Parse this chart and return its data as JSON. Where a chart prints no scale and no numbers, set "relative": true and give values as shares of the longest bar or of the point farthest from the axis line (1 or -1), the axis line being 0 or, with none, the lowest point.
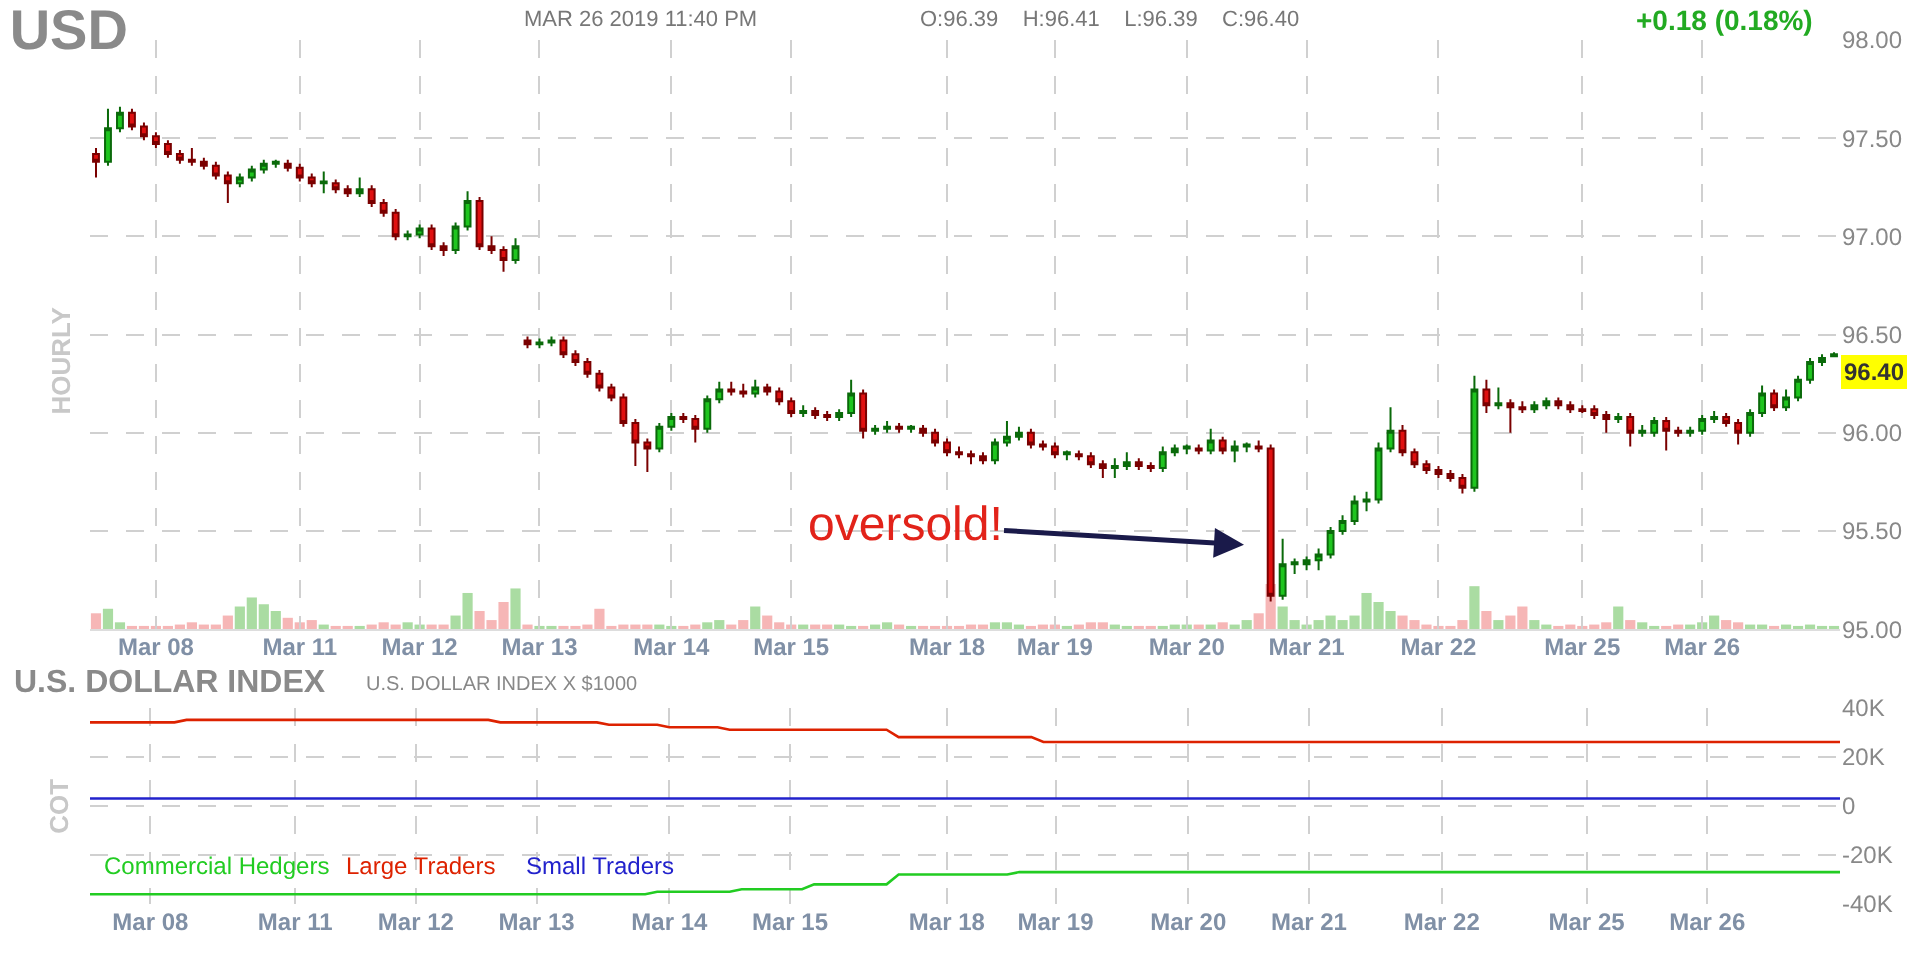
{
  "chart_data": [
    {
      "type": "candlestick",
      "title": "USD",
      "ylabel": "HOURLY",
      "annotations": [
        "MAR 26 2019 11:40 PM",
        "O:96.39    H:96.41    L:96.39    C:96.40",
        "+0.18 (0.18%)",
        "oversold!",
        "96.40"
      ],
      "categories": [
        null,
        null,
        null,
        null,
        null,
        "Mar 08",
        null,
        null,
        null,
        null,
        null,
        null,
        null,
        null,
        null,
        null,
        null,
        "Mar 11",
        null,
        null,
        null,
        null,
        null,
        null,
        null,
        null,
        null,
        "Mar 12",
        null,
        null,
        null,
        null,
        null,
        null,
        null,
        null,
        null,
        "Mar 13",
        null,
        null,
        null,
        null,
        null,
        null,
        null,
        null,
        null,
        null,
        "Mar 14",
        null,
        null,
        null,
        null,
        null,
        null,
        null,
        null,
        null,
        "Mar 15",
        null,
        null,
        null,
        null,
        null,
        null,
        null,
        null,
        null,
        null,
        null,
        null,
        "Mar 18",
        null,
        null,
        null,
        null,
        null,
        null,
        null,
        null,
        "Mar 19",
        null,
        null,
        null,
        null,
        null,
        null,
        null,
        null,
        null,
        null,
        "Mar 20",
        null,
        null,
        null,
        null,
        null,
        null,
        null,
        null,
        null,
        "Mar 21",
        null,
        null,
        null,
        null,
        null,
        null,
        null,
        null,
        null,
        null,
        "Mar 22",
        null,
        null,
        null,
        null,
        null,
        null,
        null,
        null,
        null,
        null,
        null,
        "Mar 25",
        null,
        null,
        null,
        null,
        null,
        null,
        null,
        null,
        null,
        "Mar 26",
        null,
        null,
        null,
        null,
        null,
        null,
        null,
        null,
        null,
        null,
        null
      ],
      "ohlc": [
        [
          97.42,
          97.45,
          97.3,
          97.38
        ],
        [
          97.38,
          97.65,
          97.36,
          97.55
        ],
        [
          97.55,
          97.66,
          97.53,
          97.63
        ],
        [
          97.63,
          97.65,
          97.54,
          97.56
        ],
        [
          97.56,
          97.58,
          97.49,
          97.51
        ],
        [
          97.51,
          97.53,
          97.45,
          97.47
        ],
        [
          97.47,
          97.49,
          97.4,
          97.42
        ],
        [
          97.42,
          97.44,
          97.37,
          97.39
        ],
        [
          97.39,
          97.45,
          97.36,
          97.38
        ],
        [
          97.38,
          97.4,
          97.34,
          97.36
        ],
        [
          97.36,
          97.38,
          97.29,
          97.31
        ],
        [
          97.31,
          97.33,
          97.17,
          97.27
        ],
        [
          97.27,
          97.32,
          97.25,
          97.3
        ],
        [
          97.3,
          97.36,
          97.28,
          97.34
        ],
        [
          97.34,
          97.39,
          97.32,
          97.37
        ],
        [
          97.37,
          97.39,
          97.35,
          97.38
        ],
        [
          97.37,
          97.39,
          97.33,
          97.35
        ],
        [
          97.35,
          97.37,
          97.28,
          97.3
        ],
        [
          97.3,
          97.32,
          97.25,
          97.27
        ],
        [
          97.27,
          97.33,
          97.22,
          97.28
        ],
        [
          97.27,
          97.29,
          97.22,
          97.24
        ],
        [
          97.24,
          97.26,
          97.2,
          97.22
        ],
        [
          97.22,
          97.3,
          97.2,
          97.24
        ],
        [
          97.24,
          97.26,
          97.15,
          97.17
        ],
        [
          97.17,
          97.19,
          97.1,
          97.12
        ],
        [
          97.12,
          97.14,
          96.98,
          97.0
        ],
        [
          97.0,
          97.03,
          96.98,
          97.01
        ],
        [
          97.01,
          97.06,
          96.99,
          97.04
        ],
        [
          97.04,
          97.06,
          96.93,
          96.95
        ],
        [
          96.95,
          96.97,
          96.9,
          96.93
        ],
        [
          96.93,
          97.07,
          96.91,
          97.05
        ],
        [
          97.05,
          97.23,
          97.03,
          97.18
        ],
        [
          97.18,
          97.2,
          96.93,
          96.95
        ],
        [
          96.95,
          97.0,
          96.91,
          96.93
        ],
        [
          96.93,
          96.95,
          96.82,
          96.88
        ],
        [
          96.88,
          96.99,
          96.86,
          96.95
        ],
        [
          96.47,
          96.49,
          96.43,
          96.45
        ],
        [
          96.45,
          96.48,
          96.43,
          96.46
        ],
        [
          96.46,
          96.49,
          96.44,
          96.47
        ],
        [
          96.47,
          96.49,
          96.38,
          96.4
        ],
        [
          96.4,
          96.42,
          96.34,
          96.36
        ],
        [
          96.36,
          96.38,
          96.28,
          96.3
        ],
        [
          96.3,
          96.32,
          96.21,
          96.23
        ],
        [
          96.23,
          96.25,
          96.16,
          96.18
        ],
        [
          96.18,
          96.2,
          96.03,
          96.05
        ],
        [
          96.05,
          96.07,
          95.83,
          95.95
        ],
        [
          95.95,
          95.97,
          95.8,
          95.92
        ],
        [
          95.92,
          96.05,
          95.9,
          96.03
        ],
        [
          96.03,
          96.1,
          96.01,
          96.08
        ],
        [
          96.08,
          96.1,
          96.05,
          96.07
        ],
        [
          96.07,
          96.09,
          95.95,
          96.02
        ],
        [
          96.02,
          96.19,
          96.0,
          96.17
        ],
        [
          96.17,
          96.26,
          96.15,
          96.22
        ],
        [
          96.22,
          96.26,
          96.19,
          96.21
        ],
        [
          96.21,
          96.25,
          96.18,
          96.2
        ],
        [
          96.2,
          96.27,
          96.18,
          96.23
        ],
        [
          96.23,
          96.25,
          96.19,
          96.21
        ],
        [
          96.21,
          96.23,
          96.14,
          96.16
        ],
        [
          96.16,
          96.18,
          96.08,
          96.1
        ],
        [
          96.1,
          96.14,
          96.08,
          96.11
        ],
        [
          96.11,
          96.13,
          96.07,
          96.09
        ],
        [
          96.09,
          96.11,
          96.06,
          96.08
        ],
        [
          96.08,
          96.12,
          96.06,
          96.1
        ],
        [
          96.1,
          96.27,
          96.08,
          96.2
        ],
        [
          96.2,
          96.22,
          95.97,
          96.01
        ],
        [
          96.01,
          96.04,
          95.99,
          96.02
        ],
        [
          96.02,
          96.06,
          96.0,
          96.03
        ],
        [
          96.03,
          96.05,
          96.0,
          96.02
        ],
        [
          96.02,
          96.04,
          96.0,
          96.03
        ],
        [
          96.02,
          96.04,
          95.98,
          96.0
        ],
        [
          96.0,
          96.02,
          95.93,
          95.95
        ],
        [
          95.95,
          95.97,
          95.88,
          95.9
        ],
        [
          95.9,
          95.93,
          95.87,
          95.89
        ],
        [
          95.89,
          95.91,
          95.84,
          95.88
        ],
        [
          95.88,
          95.9,
          95.84,
          95.86
        ],
        [
          95.86,
          95.97,
          95.84,
          95.95
        ],
        [
          95.95,
          96.06,
          95.93,
          95.98
        ],
        [
          95.98,
          96.03,
          95.96,
          96.0
        ],
        [
          96.0,
          96.02,
          95.92,
          95.94
        ],
        [
          95.94,
          95.96,
          95.91,
          95.93
        ],
        [
          95.93,
          95.95,
          95.87,
          95.89
        ],
        [
          95.89,
          95.91,
          95.86,
          95.9
        ],
        [
          95.89,
          95.91,
          95.86,
          95.88
        ],
        [
          95.88,
          95.9,
          95.82,
          95.84
        ],
        [
          95.84,
          95.86,
          95.77,
          95.82
        ],
        [
          95.82,
          95.87,
          95.77,
          95.83
        ],
        [
          95.83,
          95.9,
          95.81,
          95.85
        ],
        [
          95.85,
          95.87,
          95.81,
          95.83
        ],
        [
          95.83,
          95.85,
          95.8,
          95.82
        ],
        [
          95.82,
          95.93,
          95.8,
          95.9
        ],
        [
          95.9,
          95.94,
          95.88,
          95.92
        ],
        [
          95.92,
          95.94,
          95.89,
          95.93
        ],
        [
          95.92,
          95.94,
          95.89,
          95.91
        ],
        [
          95.91,
          96.02,
          95.89,
          95.96
        ],
        [
          95.96,
          95.98,
          95.89,
          95.91
        ],
        [
          95.91,
          95.96,
          95.85,
          95.93
        ],
        [
          95.93,
          95.95,
          95.9,
          95.94
        ],
        [
          95.93,
          95.96,
          95.9,
          95.92
        ],
        [
          95.92,
          95.94,
          95.14,
          95.17
        ],
        [
          95.17,
          95.46,
          95.15,
          95.33
        ],
        [
          95.33,
          95.36,
          95.28,
          95.34
        ],
        [
          95.33,
          95.37,
          95.3,
          95.35
        ],
        [
          95.35,
          95.41,
          95.3,
          95.38
        ],
        [
          95.38,
          95.52,
          95.36,
          95.5
        ],
        [
          95.5,
          95.58,
          95.48,
          95.55
        ],
        [
          95.55,
          95.68,
          95.53,
          95.65
        ],
        [
          95.65,
          95.7,
          95.6,
          95.66
        ],
        [
          95.66,
          95.95,
          95.64,
          95.92
        ],
        [
          95.92,
          96.13,
          95.9,
          96.01
        ],
        [
          96.01,
          96.04,
          95.88,
          95.9
        ],
        [
          95.9,
          95.92,
          95.82,
          95.84
        ],
        [
          95.84,
          95.86,
          95.79,
          95.81
        ],
        [
          95.81,
          95.83,
          95.77,
          95.79
        ],
        [
          95.79,
          95.81,
          95.75,
          95.77
        ],
        [
          95.77,
          95.79,
          95.69,
          95.72
        ],
        [
          95.72,
          96.29,
          95.7,
          96.22
        ],
        [
          96.22,
          96.27,
          96.1,
          96.14
        ],
        [
          96.14,
          96.23,
          96.12,
          96.15
        ],
        [
          96.15,
          96.17,
          96.0,
          96.13
        ],
        [
          96.13,
          96.16,
          96.1,
          96.12
        ],
        [
          96.12,
          96.16,
          96.1,
          96.14
        ],
        [
          96.14,
          96.18,
          96.12,
          96.16
        ],
        [
          96.16,
          96.18,
          96.12,
          96.14
        ],
        [
          96.14,
          96.16,
          96.1,
          96.12
        ],
        [
          96.12,
          96.14,
          96.1,
          96.11
        ],
        [
          96.12,
          96.14,
          96.07,
          96.09
        ],
        [
          96.09,
          96.11,
          96.0,
          96.07
        ],
        [
          96.07,
          96.1,
          96.05,
          96.08
        ],
        [
          96.08,
          96.1,
          95.93,
          96.0
        ],
        [
          96.0,
          96.04,
          95.98,
          96.01
        ],
        [
          96.0,
          96.08,
          95.98,
          96.06
        ],
        [
          96.06,
          96.08,
          95.91,
          96.01
        ],
        [
          96.01,
          96.03,
          95.98,
          96.0
        ],
        [
          96.0,
          96.03,
          95.98,
          96.01
        ],
        [
          96.01,
          96.09,
          95.99,
          96.07
        ],
        [
          96.07,
          96.11,
          96.05,
          96.08
        ],
        [
          96.08,
          96.1,
          96.03,
          96.05
        ],
        [
          96.05,
          96.07,
          95.94,
          96.0
        ],
        [
          96.0,
          96.12,
          95.98,
          96.1
        ],
        [
          96.1,
          96.24,
          96.08,
          96.2
        ],
        [
          96.2,
          96.22,
          96.11,
          96.13
        ],
        [
          96.13,
          96.22,
          96.11,
          96.18
        ],
        [
          96.18,
          96.29,
          96.16,
          96.27
        ],
        [
          96.27,
          96.38,
          96.25,
          96.36
        ],
        [
          96.36,
          96.4,
          96.34,
          96.38
        ],
        [
          96.39,
          96.41,
          96.39,
          96.4
        ]
      ],
      "ylim": [
        95,
        98
      ],
      "yticks": [
        {
          "value": 95,
          "label": "95.00"
        },
        {
          "value": 95.5,
          "label": "95.50"
        },
        {
          "value": 96,
          "label": "96.00"
        },
        {
          "value": 96.5,
          "label": "96.50"
        },
        {
          "value": 97,
          "label": "97.00"
        },
        {
          "value": 97.5,
          "label": "97.50"
        },
        {
          "value": 98,
          "label": "98.00"
        }
      ],
      "grid": true
    },
    {
      "type": "bar",
      "relative": true,
      "categories": [
        null,
        null,
        null,
        null,
        null,
        null,
        null,
        null,
        null,
        null,
        null,
        null,
        null,
        null,
        null,
        null,
        null,
        null,
        null,
        null,
        null,
        null,
        null,
        null,
        null,
        null,
        null,
        null,
        null,
        null,
        null,
        null,
        null,
        null,
        null,
        null,
        null,
        null,
        null,
        null,
        null,
        null,
        null,
        null,
        null,
        null,
        null,
        null,
        null,
        null,
        null,
        null,
        null,
        null,
        null,
        null,
        null,
        null,
        null,
        null,
        null,
        null,
        null,
        null,
        null,
        null,
        null,
        null,
        null,
        null,
        null,
        null,
        null,
        null,
        null,
        null,
        null,
        null,
        null,
        null,
        null,
        null,
        null,
        null,
        null,
        null,
        null,
        null,
        null,
        null,
        null,
        null,
        null,
        null,
        null,
        null,
        null,
        null,
        null,
        null,
        null,
        null,
        null,
        null,
        null,
        null,
        null,
        null,
        null,
        null,
        null,
        null,
        null,
        null,
        null,
        null,
        null,
        null,
        null,
        null,
        null,
        null,
        null,
        null,
        null,
        null,
        null,
        null,
        null,
        null,
        null,
        null,
        null,
        null,
        null,
        null,
        null,
        null,
        null,
        null,
        null,
        null,
        null,
        null,
        null,
        null
      ],
      "values": [
        0.35,
        0.45,
        0.15,
        0.05,
        0.05,
        0.05,
        0.05,
        0.1,
        0.15,
        0.1,
        0.1,
        0.3,
        0.5,
        0.7,
        0.55,
        0.4,
        0.25,
        0.15,
        0.2,
        0.1,
        0.05,
        0.05,
        0.05,
        0.1,
        0.15,
        0.1,
        0.15,
        0.1,
        0.1,
        0.1,
        0.3,
        0.8,
        0.4,
        0.2,
        0.6,
        0.9,
        0.1,
        0.05,
        0.05,
        0.05,
        0.05,
        0.1,
        0.45,
        0.05,
        0.1,
        0.1,
        0.1,
        0.1,
        0.05,
        0.05,
        0.1,
        0.15,
        0.2,
        0.1,
        0.2,
        0.5,
        0.3,
        0.15,
        0.1,
        0.1,
        0.1,
        0.1,
        0.1,
        0.05,
        0.05,
        0.1,
        0.15,
        0.1,
        0.05,
        0.05,
        0.05,
        0.05,
        0.05,
        0.1,
        0.1,
        0.15,
        0.15,
        0.1,
        0.05,
        0.1,
        0.1,
        0.05,
        0.1,
        0.15,
        0.15,
        0.1,
        0.05,
        0.05,
        0.05,
        0.05,
        0.1,
        0.1,
        0.1,
        0.1,
        0.15,
        0.1,
        0.2,
        0.35,
        1.0,
        0.5,
        0.2,
        0.1,
        0.2,
        0.3,
        0.2,
        0.3,
        0.8,
        0.6,
        0.4,
        0.3,
        0.2,
        0.1,
        0.05,
        0.05,
        0.2,
        0.95,
        0.4,
        0.2,
        0.3,
        0.5,
        0.2,
        0.1,
        0.05,
        0.1,
        0.05,
        0.1,
        0.15,
        0.5,
        0.2,
        0.15,
        0.05,
        0.05,
        0.1,
        0.1,
        0.15,
        0.3,
        0.2,
        0.15,
        0.1,
        0.1,
        0.05,
        0.1,
        0.05,
        0.1,
        0.05,
        0.05
      ]
    },
    {
      "type": "line",
      "title": "U.S. DOLLAR INDEX",
      "subtitle": "U.S. DOLLAR INDEX X $1000",
      "ylabel": "COT",
      "categories": [
        null,
        null,
        null,
        null,
        null,
        "Mar 08",
        null,
        null,
        null,
        null,
        null,
        null,
        null,
        null,
        null,
        null,
        null,
        "Mar 11",
        null,
        null,
        null,
        null,
        null,
        null,
        null,
        null,
        null,
        "Mar 12",
        null,
        null,
        null,
        null,
        null,
        null,
        null,
        null,
        null,
        "Mar 13",
        null,
        null,
        null,
        null,
        null,
        null,
        null,
        null,
        null,
        null,
        "Mar 14",
        null,
        null,
        null,
        null,
        null,
        null,
        null,
        null,
        null,
        "Mar 15",
        null,
        null,
        null,
        null,
        null,
        null,
        null,
        null,
        null,
        null,
        null,
        null,
        "Mar 18",
        null,
        null,
        null,
        null,
        null,
        null,
        null,
        null,
        "Mar 19",
        null,
        null,
        null,
        null,
        null,
        null,
        null,
        null,
        null,
        null,
        "Mar 20",
        null,
        null,
        null,
        null,
        null,
        null,
        null,
        null,
        null,
        "Mar 21",
        null,
        null,
        null,
        null,
        null,
        null,
        null,
        null,
        null,
        null,
        "Mar 22",
        null,
        null,
        null,
        null,
        null,
        null,
        null,
        null,
        null,
        null,
        null,
        "Mar 25",
        null,
        null,
        null,
        null,
        null,
        null,
        null,
        null,
        null,
        "Mar 26",
        null,
        null,
        null,
        null,
        null,
        null,
        null,
        null,
        null,
        null,
        null
      ],
      "series": [
        {
          "name": "Commercial Hedgers",
          "color": "#22cc22",
          "values": [
            -36000,
            -36000,
            -36000,
            -36000,
            -36000,
            -36000,
            -36000,
            -36000,
            -36000,
            -36000,
            -36000,
            -36000,
            -36000,
            -36000,
            -36000,
            -36000,
            -36000,
            -36000,
            -36000,
            -36000,
            -36000,
            -36000,
            -36000,
            -36000,
            -36000,
            -36000,
            -36000,
            -36000,
            -36000,
            -36000,
            -36000,
            -36000,
            -36000,
            -36000,
            -36000,
            -36000,
            -36000,
            -36000,
            -36000,
            -36000,
            -36000,
            -36000,
            -36000,
            -36000,
            -36000,
            -36000,
            -36000,
            -35000,
            -35000,
            -35000,
            -35000,
            -35000,
            -35000,
            -35000,
            -34000,
            -34000,
            -34000,
            -34000,
            -34000,
            -34000,
            -32000,
            -32000,
            -32000,
            -32000,
            -32000,
            -32000,
            -32000,
            -28000,
            -28000,
            -28000,
            -28000,
            -28000,
            -28000,
            -28000,
            -28000,
            -28000,
            -28000,
            -27000,
            -27000,
            -27000,
            -27000,
            -27000,
            -27000,
            -27000,
            -27000,
            -27000,
            -27000,
            -27000,
            -27000,
            -27000,
            -27000,
            -27000,
            -27000,
            -27000,
            -27000,
            -27000,
            -27000,
            -27000,
            -27000,
            -27000,
            -27000,
            -27000,
            -27000,
            -27000,
            -27000,
            -27000,
            -27000,
            -27000,
            -27000,
            -27000,
            -27000,
            -27000,
            -27000,
            -27000,
            -27000,
            -27000,
            -27000,
            -27000,
            -27000,
            -27000,
            -27000,
            -27000,
            -27000,
            -27000,
            -27000,
            -27000,
            -27000,
            -27000,
            -27000,
            -27000,
            -27000,
            -27000,
            -27000,
            -27000,
            -27000,
            -27000,
            -27000,
            -27000,
            -27000,
            -27000,
            -27000,
            -27000,
            -27000,
            -27000,
            -27000,
            -27000
          ]
        },
        {
          "name": "Large Traders",
          "color": "#dd2200",
          "values": [
            34000,
            34000,
            34000,
            34000,
            34000,
            34000,
            34000,
            34000,
            35000,
            35000,
            35000,
            35000,
            35000,
            35000,
            35000,
            35000,
            35000,
            35000,
            35000,
            35000,
            35000,
            35000,
            35000,
            35000,
            35000,
            35000,
            35000,
            35000,
            35000,
            35000,
            35000,
            35000,
            35000,
            35000,
            34000,
            34000,
            34000,
            34000,
            34000,
            34000,
            34000,
            34000,
            34000,
            33000,
            33000,
            33000,
            33000,
            33000,
            32000,
            32000,
            32000,
            32000,
            32000,
            31000,
            31000,
            31000,
            31000,
            31000,
            31000,
            31000,
            31000,
            31000,
            31000,
            31000,
            31000,
            31000,
            31000,
            28000,
            28000,
            28000,
            28000,
            28000,
            28000,
            28000,
            28000,
            28000,
            28000,
            28000,
            28000,
            26000,
            26000,
            26000,
            26000,
            26000,
            26000,
            26000,
            26000,
            26000,
            26000,
            26000,
            26000,
            26000,
            26000,
            26000,
            26000,
            26000,
            26000,
            26000,
            26000,
            26000,
            26000,
            26000,
            26000,
            26000,
            26000,
            26000,
            26000,
            26000,
            26000,
            26000,
            26000,
            26000,
            26000,
            26000,
            26000,
            26000,
            26000,
            26000,
            26000,
            26000,
            26000,
            26000,
            26000,
            26000,
            26000,
            26000,
            26000,
            26000,
            26000,
            26000,
            26000,
            26000,
            26000,
            26000,
            26000,
            26000,
            26000,
            26000,
            26000,
            26000,
            26000,
            26000,
            26000,
            26000,
            26000,
            26000
          ]
        },
        {
          "name": "Small Traders",
          "color": "#2222cc",
          "values": [
            3000,
            3000,
            3000,
            3000,
            3000,
            3000,
            3000,
            3000,
            3000,
            3000,
            3000,
            3000,
            3000,
            3000,
            3000,
            3000,
            3000,
            3000,
            3000,
            3000,
            3000,
            3000,
            3000,
            3000,
            3000,
            3000,
            3000,
            3000,
            3000,
            3000,
            3000,
            3000,
            3000,
            3000,
            3000,
            3000,
            3000,
            3000,
            3000,
            3000,
            3000,
            3000,
            3000,
            3000,
            3000,
            3000,
            3000,
            3000,
            3000,
            3000,
            3000,
            3000,
            3000,
            3000,
            3000,
            3000,
            3000,
            3000,
            3000,
            3000,
            3000,
            3000,
            3000,
            3000,
            3000,
            3000,
            3000,
            3000,
            3000,
            3000,
            3000,
            3000,
            3000,
            3000,
            3000,
            3000,
            3000,
            3000,
            3000,
            3000,
            3000,
            3000,
            3000,
            3000,
            3000,
            3000,
            3000,
            3000,
            3000,
            3000,
            3000,
            3000,
            3000,
            3000,
            3000,
            3000,
            3000,
            3000,
            3000,
            3000,
            3000,
            3000,
            3000,
            3000,
            3000,
            3000,
            3000,
            3000,
            3000,
            3000,
            3000,
            3000,
            3000,
            3000,
            3000,
            3000,
            3000,
            3000,
            3000,
            3000,
            3000,
            3000,
            3000,
            3000,
            3000,
            3000,
            3000,
            3000,
            3000,
            3000,
            3000,
            3000,
            3000,
            3000,
            3000,
            3000,
            3000,
            3000,
            3000,
            3000,
            3000,
            3000,
            3000,
            3000,
            3000,
            3000
          ]
        }
      ],
      "ylim": [
        -40000,
        40000
      ],
      "yticks": [
        {
          "value": -40000,
          "label": "-40K"
        },
        {
          "value": -20000,
          "label": "-20K"
        },
        0,
        {
          "value": 20000,
          "label": "20K"
        },
        {
          "value": 40000,
          "label": "40K"
        }
      ],
      "grid": true
    }
  ]
}
